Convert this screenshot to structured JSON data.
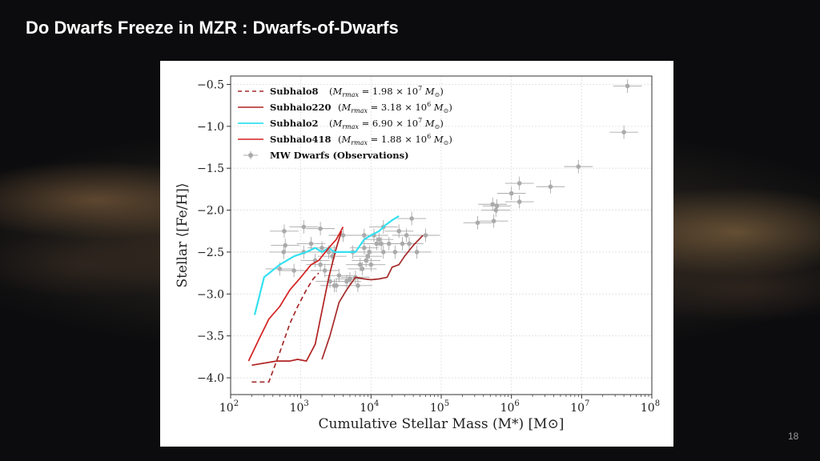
{
  "slide": {
    "title": "Do Dwarfs Freeze in MZR : Dwarfs-of-Dwarfs",
    "page_number": "18"
  },
  "chart_data": {
    "type": "line",
    "title": "",
    "xlabel": "Cumulative Stellar Mass (M*) [M⊙]",
    "ylabel": "Stellar ⟨[Fe/H]⟩",
    "xscale": "log",
    "xlim": [
      100,
      100000000
    ],
    "ylim": [
      -4.2,
      -0.4
    ],
    "grid": true,
    "legend_position": "top-left",
    "x_ticks": [
      {
        "value": 100,
        "base": "10",
        "exp": "2"
      },
      {
        "value": 1000,
        "base": "10",
        "exp": "3"
      },
      {
        "value": 10000,
        "base": "10",
        "exp": "4"
      },
      {
        "value": 100000,
        "base": "10",
        "exp": "5"
      },
      {
        "value": 1000000,
        "base": "10",
        "exp": "6"
      },
      {
        "value": 10000000,
        "base": "10",
        "exp": "7"
      },
      {
        "value": 100000000,
        "base": "10",
        "exp": "8"
      }
    ],
    "y_ticks": [
      {
        "value": -0.5,
        "label": "−0.5"
      },
      {
        "value": -1.0,
        "label": "−1.0"
      },
      {
        "value": -1.5,
        "label": "−1.5"
      },
      {
        "value": -2.0,
        "label": "−2.0"
      },
      {
        "value": -2.5,
        "label": "−2.5"
      },
      {
        "value": -3.0,
        "label": "−3.0"
      },
      {
        "value": -3.5,
        "label": "−3.5"
      },
      {
        "value": -4.0,
        "label": "−4.0"
      }
    ],
    "series": [
      {
        "name": "Subhalo8",
        "mass_label": "(M_rmax = 1.98 × 10^7 M⊙)",
        "color": "#a52a2a",
        "style": "dashed",
        "x": [
          200,
          350,
          500,
          700,
          900,
          1200,
          1500,
          1800
        ],
        "y": [
          -4.05,
          -4.05,
          -3.7,
          -3.35,
          -3.15,
          -2.95,
          -2.82,
          -2.75
        ]
      },
      {
        "name": "Subhalo220",
        "mass_label": "(M_rmax = 3.18 × 10^6 M⊙)",
        "color": "#b22222",
        "style": "solid",
        "x": [
          200,
          450,
          700,
          900,
          1200,
          1600,
          2000,
          2500,
          3200,
          3800
        ],
        "y": [
          -3.85,
          -3.8,
          -3.8,
          -3.78,
          -3.8,
          -3.6,
          -3.2,
          -2.8,
          -2.45,
          -2.25
        ]
      },
      {
        "name": "Subhalo2",
        "mass_label": "(M_rmax = 6.90 × 10^7 M⊙)",
        "color": "#33e0f0",
        "style": "solid",
        "x": [
          220,
          300,
          500,
          800,
          1200,
          1600,
          2000,
          2500,
          3000,
          4000,
          6000,
          8000,
          10000,
          13000,
          16000,
          20000,
          25000
        ],
        "y": [
          -3.25,
          -2.8,
          -2.65,
          -2.55,
          -2.5,
          -2.45,
          -2.5,
          -2.45,
          -2.5,
          -2.5,
          -2.5,
          -2.35,
          -2.3,
          -2.25,
          -2.18,
          -2.12,
          -2.07
        ]
      },
      {
        "name": "Subhalo418",
        "mass_label": "(M_rmax = 1.88 × 10^6 M⊙)",
        "color": "#d42020",
        "style": "solid",
        "x": [
          180,
          250,
          350,
          500,
          700,
          1000,
          1400,
          1800,
          2500,
          3200,
          4000
        ],
        "y": [
          -3.8,
          -3.55,
          -3.3,
          -3.15,
          -2.95,
          -2.8,
          -2.65,
          -2.6,
          -2.45,
          -2.35,
          -2.2
        ]
      },
      {
        "name": "Subhalo418",
        "mass_label": "",
        "color": "#a52a2a",
        "style": "solid",
        "x": [
          2000,
          2600,
          3500,
          4500,
          6000,
          8000,
          10000,
          13000,
          17000,
          20000,
          25000,
          30000,
          40000,
          55000
        ],
        "y": [
          -3.78,
          -3.5,
          -3.1,
          -2.95,
          -2.8,
          -2.82,
          -2.83,
          -2.82,
          -2.8,
          -2.68,
          -2.65,
          -2.55,
          -2.42,
          -2.3
        ]
      },
      {
        "name": "MW Dwarfs (Observations)",
        "color": "#aaaaaa",
        "style": "errorbar",
        "x": [
          580,
          600,
          570,
          1100,
          1900,
          1100,
          800,
          1600,
          1900,
          2500,
          3000,
          2200,
          2600,
          3000,
          3500,
          3200,
          4500,
          5000,
          6500,
          6000,
          7000,
          5500,
          8000,
          8500,
          7500,
          9500,
          9000,
          10000,
          11000,
          12000,
          13000,
          14000,
          15000,
          18000,
          22000,
          28000,
          32000,
          38000,
          15000,
          25000,
          35000,
          45000,
          60000,
          1400,
          2000,
          2800,
          500,
          4000,
          8000,
          330000,
          540000,
          560000,
          600000,
          620000,
          1000000,
          1300000,
          1300000,
          3600000,
          9000000,
          40000000,
          45000000
        ],
        "y": [
          -2.25,
          -2.42,
          -2.5,
          -2.2,
          -2.22,
          -2.5,
          -2.72,
          -2.6,
          -2.65,
          -2.5,
          -2.5,
          -2.72,
          -2.85,
          -2.9,
          -2.78,
          -2.9,
          -2.85,
          -2.82,
          -2.9,
          -2.8,
          -2.65,
          -2.5,
          -2.45,
          -2.6,
          -2.7,
          -2.5,
          -2.55,
          -2.65,
          -2.3,
          -2.4,
          -2.35,
          -2.4,
          -2.5,
          -2.4,
          -2.5,
          -2.4,
          -2.3,
          -2.1,
          -2.2,
          -2.25,
          -2.4,
          -2.5,
          -2.3,
          -2.4,
          -2.45,
          -2.55,
          -2.7,
          -2.3,
          -2.3,
          -2.15,
          -1.93,
          -2.13,
          -2.0,
          -1.95,
          -1.8,
          -1.68,
          -1.9,
          -1.72,
          -1.48,
          -1.07,
          -0.52
        ],
        "xerr_factor": 1.6,
        "yerr": 0.08
      }
    ]
  }
}
